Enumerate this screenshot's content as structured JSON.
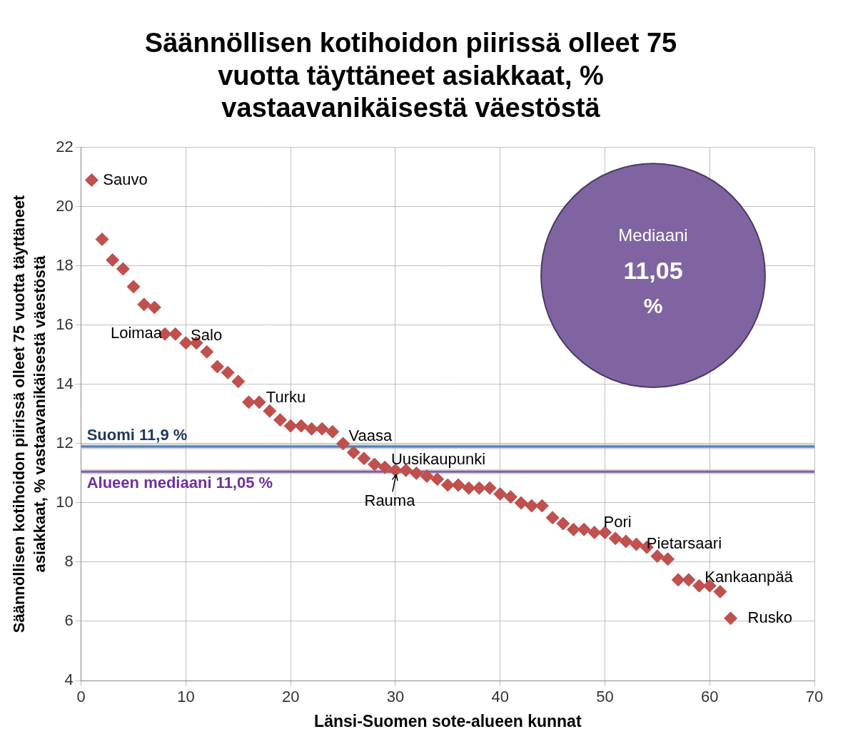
{
  "chart_data": {
    "type": "scatter",
    "title": [
      "Säännöllisen kotihoidon piirissä olleet 75",
      "vuotta täyttäneet asiakkaat, %",
      "vastaavanikäisestä väestöstä"
    ],
    "x_label": "Länsi-Suomen sote-alueen kunnat",
    "y_label": [
      "Säännöllisen kotihoidon piirissä olleet 75 vuotta täyttäneet",
      "asiakkaat, % vastaavanikäisestä väestöstä"
    ],
    "x": [
      1,
      2,
      3,
      4,
      5,
      6,
      7,
      8,
      9,
      10,
      11,
      12,
      13,
      14,
      15,
      16,
      17,
      18,
      19,
      20,
      21,
      22,
      23,
      24,
      25,
      26,
      27,
      28,
      29,
      30,
      31,
      32,
      33,
      34,
      35,
      36,
      37,
      38,
      39,
      40,
      41,
      42,
      43,
      44,
      45,
      46,
      47,
      48,
      49,
      50,
      51,
      52,
      53,
      54,
      55,
      56,
      57,
      58,
      59,
      60,
      61,
      62
    ],
    "values": [
      20.9,
      18.9,
      18.2,
      17.9,
      17.3,
      16.7,
      16.6,
      15.7,
      15.7,
      15.4,
      15.4,
      15.1,
      14.6,
      14.4,
      14.1,
      13.4,
      13.4,
      13.1,
      12.8,
      12.6,
      12.6,
      12.5,
      12.5,
      12.4,
      12.0,
      11.7,
      11.5,
      11.3,
      11.2,
      11.1,
      11.1,
      11.0,
      10.9,
      10.8,
      10.6,
      10.6,
      10.5,
      10.5,
      10.5,
      10.3,
      10.2,
      10.0,
      9.9,
      9.9,
      9.5,
      9.3,
      9.1,
      9.1,
      9.0,
      9.0,
      8.8,
      8.7,
      8.6,
      8.5,
      8.2,
      8.1,
      7.4,
      7.4,
      7.2,
      7.2,
      7.0,
      6.1
    ],
    "color": "#c0504d",
    "marker": "diamond",
    "xlim": [
      0,
      70
    ],
    "xticks": [
      0,
      10,
      20,
      30,
      40,
      50,
      60,
      70
    ],
    "ylim": [
      4,
      22
    ],
    "yticks": [
      4,
      6,
      8,
      10,
      12,
      14,
      16,
      18,
      20,
      22
    ],
    "grid": true,
    "point_labels": [
      {
        "x": 1,
        "text": "Sauvo"
      },
      {
        "x": 8,
        "text": "Loimaa"
      },
      {
        "x": 11,
        "text": "Salo"
      },
      {
        "x": 18,
        "text": "Turku"
      },
      {
        "x": 25,
        "text": "Vaasa"
      },
      {
        "x": 30,
        "text": "Uusikaupunki"
      },
      {
        "x": 30,
        "text": "Rauma"
      },
      {
        "x": 50,
        "text": "Pori"
      },
      {
        "x": 55,
        "text": "Pietarsaari"
      },
      {
        "x": 60,
        "text": "Kankaanpää"
      },
      {
        "x": 62,
        "text": "Rusko"
      }
    ],
    "reference_lines": [
      {
        "value": 11.9,
        "label": "Suomi 11,9 %",
        "color": "#4f81bd",
        "label_color": "#1f3864"
      },
      {
        "value": 11.05,
        "label": "Alueen mediaani 11,05 %",
        "color": "#7f5fa8",
        "label_color": "#7030a0"
      }
    ],
    "callout": {
      "text": [
        "Mediaani",
        "11,05",
        "%"
      ],
      "color": "#8064a2"
    }
  }
}
